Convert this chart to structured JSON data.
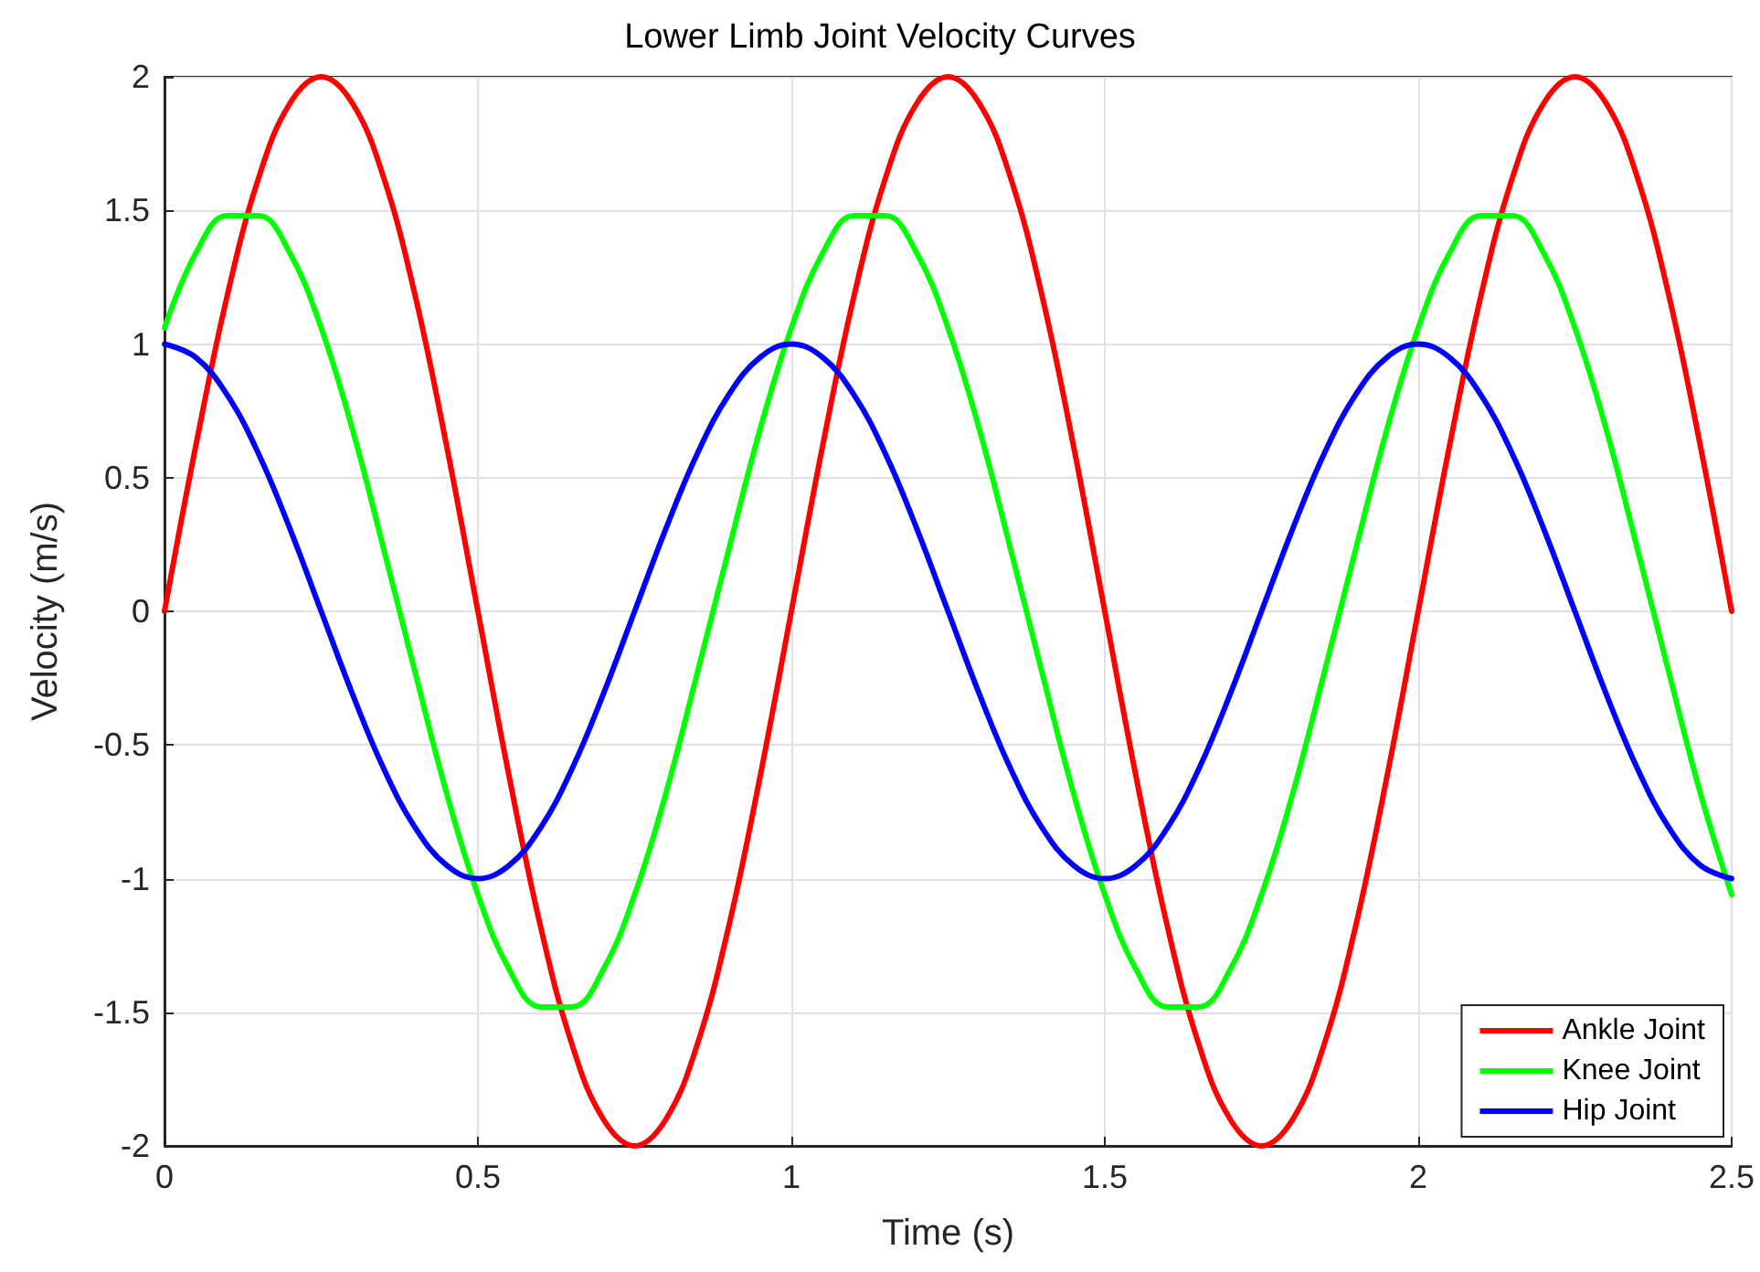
{
  "chart_data": {
    "type": "line",
    "title": "Lower Limb Joint Velocity Curves",
    "xlabel": "Time (s)",
    "ylabel": "Velocity (m/s)",
    "x": [
      0,
      0.05,
      0.1,
      0.15,
      0.2,
      0.25,
      0.3,
      0.35,
      0.4,
      0.45,
      0.5,
      0.55,
      0.6,
      0.65,
      0.7,
      0.75,
      0.8,
      0.85,
      0.9,
      0.95,
      1,
      1.05,
      1.1,
      1.15,
      1.2,
      1.25,
      1.3,
      1.35,
      1.4,
      1.45,
      1.5,
      1.55,
      1.6,
      1.65,
      1.7,
      1.75,
      1.8,
      1.85,
      1.9,
      1.95,
      2,
      2.05,
      2.1,
      2.15,
      2.2,
      2.25,
      2.3,
      2.35,
      2.4,
      2.45,
      2.5
    ],
    "series": [
      {
        "name": "Ankle Joint",
        "color": "#ff0000",
        "values": [
          0,
          0.62,
          1.18,
          1.62,
          1.9,
          2,
          1.9,
          1.62,
          1.18,
          0.62,
          0,
          -0.62,
          -1.18,
          -1.62,
          -1.9,
          -2,
          -1.9,
          -1.62,
          -1.18,
          -0.62,
          0,
          0.62,
          1.18,
          1.62,
          1.9,
          2,
          1.9,
          1.62,
          1.18,
          0.62,
          0,
          -0.62,
          -1.18,
          -1.62,
          -1.9,
          -2,
          -1.9,
          -1.62,
          -1.18,
          -0.62,
          0,
          0.62,
          1.18,
          1.62,
          1.9,
          2,
          1.9,
          1.62,
          1.18,
          0.62,
          0
        ]
      },
      {
        "name": "Knee Joint",
        "color": "#00ff00",
        "values": [
          1.06,
          1.34,
          1.48,
          1.48,
          1.34,
          1.06,
          0.68,
          0.23,
          -0.23,
          -0.68,
          -1.06,
          -1.34,
          -1.48,
          -1.48,
          -1.34,
          -1.06,
          -0.68,
          -0.23,
          0.23,
          0.68,
          1.06,
          1.34,
          1.48,
          1.48,
          1.34,
          1.06,
          0.68,
          0.23,
          -0.23,
          -0.68,
          -1.06,
          -1.34,
          -1.48,
          -1.48,
          -1.34,
          -1.06,
          -0.68,
          -0.23,
          0.23,
          0.68,
          1.06,
          1.34,
          1.48,
          1.48,
          1.34,
          1.06,
          0.68,
          0.23,
          -0.23,
          -0.68,
          -1.06
        ]
      },
      {
        "name": "Hip Joint",
        "color": "#0000ff",
        "values": [
          1,
          0.95,
          0.81,
          0.59,
          0.31,
          0,
          -0.31,
          -0.59,
          -0.81,
          -0.95,
          -1,
          -0.95,
          -0.81,
          -0.59,
          -0.31,
          0,
          0.31,
          0.59,
          0.81,
          0.95,
          1,
          0.95,
          0.81,
          0.59,
          0.31,
          0,
          -0.31,
          -0.59,
          -0.81,
          -0.95,
          -1,
          -0.95,
          -0.81,
          -0.59,
          -0.31,
          0,
          0.31,
          0.59,
          0.81,
          0.95,
          1,
          0.95,
          0.81,
          0.59,
          0.31,
          0,
          -0.31,
          -0.59,
          -0.81,
          -0.95,
          -1
        ]
      }
    ],
    "xlim": [
      0,
      2.5
    ],
    "xticks": [
      0,
      0.5,
      1,
      1.5,
      2,
      2.5
    ],
    "ylim": [
      -2,
      2
    ],
    "yticks": [
      -2,
      -1.5,
      -1,
      -0.5,
      0,
      0.5,
      1,
      1.5,
      2
    ],
    "grid": true,
    "legend": "bottom right",
    "marker": "none",
    "line_style": "solid"
  }
}
